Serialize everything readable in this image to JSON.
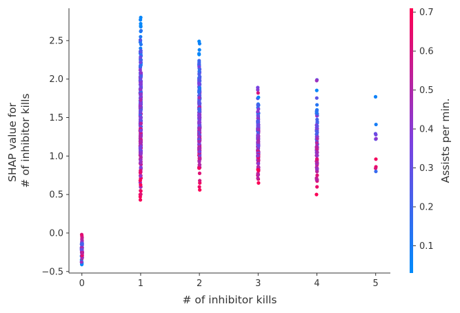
{
  "chart_data": {
    "type": "scatter",
    "xlabel": "# of inhibitor kills",
    "ylabel_lines": [
      "SHAP value for",
      "# of inhibitor kills"
    ],
    "xlim": [
      -0.22,
      5.25
    ],
    "ylim": [
      -0.52,
      2.92
    ],
    "xticks": [
      0,
      1,
      2,
      3,
      4,
      5
    ],
    "yticks": [
      -0.5,
      0.0,
      0.5,
      1.0,
      1.5,
      2.0,
      2.5
    ],
    "ytick_labels": [
      "−0.5",
      "0.0",
      "0.5",
      "1.0",
      "1.5",
      "2.0",
      "2.5"
    ],
    "grid": false,
    "colorbar": {
      "label": "Assists per min.",
      "range": [
        0.03,
        0.71
      ],
      "ticks": [
        0.1,
        0.2,
        0.3,
        0.4,
        0.5,
        0.6,
        0.7
      ],
      "tick_labels": [
        "0.1",
        "0.2",
        "0.3",
        "0.4",
        "0.5",
        "0.6",
        "0.7"
      ],
      "colors": {
        "low": "#008bfb",
        "mid": "#7e40df",
        "high": "#ff0052"
      }
    },
    "groups": [
      {
        "x": 0,
        "range": [
          -0.41,
          -0.02
        ],
        "count": 60,
        "points": [
          [
            -0.02,
            0.62
          ],
          [
            -0.04,
            0.65
          ],
          [
            -0.06,
            0.58
          ],
          [
            -0.08,
            0.55
          ],
          [
            -0.1,
            0.52
          ],
          [
            -0.12,
            0.45
          ],
          [
            -0.15,
            0.35
          ],
          [
            -0.2,
            0.25
          ],
          [
            -0.25,
            0.15
          ],
          [
            -0.3,
            0.08
          ],
          [
            -0.35,
            0.06
          ],
          [
            -0.38,
            0.05
          ],
          [
            -0.4,
            0.06
          ],
          [
            -0.41,
            0.05
          ]
        ]
      },
      {
        "x": 1,
        "range": [
          0.42,
          2.8
        ],
        "count": 320,
        "points": [
          [
            2.8,
            0.05
          ],
          [
            2.77,
            0.06
          ],
          [
            2.72,
            0.05
          ],
          [
            2.68,
            0.08
          ],
          [
            2.62,
            0.06
          ],
          [
            2.55,
            0.1
          ],
          [
            2.5,
            0.07
          ],
          [
            2.45,
            0.12
          ],
          [
            2.4,
            0.08
          ],
          [
            2.3,
            0.15
          ],
          [
            1.3,
            0.65
          ],
          [
            1.2,
            0.6
          ],
          [
            0.6,
            0.66
          ],
          [
            0.55,
            0.63
          ],
          [
            0.5,
            0.68
          ],
          [
            0.47,
            0.7
          ],
          [
            0.43,
            0.69
          ]
        ]
      },
      {
        "x": 2,
        "range": [
          0.55,
          2.5
        ],
        "count": 300,
        "points": [
          [
            2.49,
            0.05
          ],
          [
            2.46,
            0.07
          ],
          [
            2.38,
            0.06
          ],
          [
            2.33,
            0.08
          ],
          [
            2.22,
            0.12
          ],
          [
            2.2,
            0.18
          ],
          [
            2.08,
            0.35
          ],
          [
            1.9,
            0.3
          ],
          [
            0.65,
            0.68
          ],
          [
            0.6,
            0.66
          ],
          [
            0.56,
            0.7
          ]
        ]
      },
      {
        "x": 3,
        "range": [
          0.63,
          1.9
        ],
        "count": 180,
        "points": [
          [
            1.89,
            0.35
          ],
          [
            1.86,
            0.4
          ],
          [
            1.82,
            0.6
          ],
          [
            1.75,
            0.3
          ],
          [
            1.66,
            0.08
          ],
          [
            1.63,
            0.1
          ],
          [
            1.3,
            0.6
          ],
          [
            0.75,
            0.65
          ],
          [
            0.7,
            0.66
          ],
          [
            0.65,
            0.7
          ]
        ]
      },
      {
        "x": 4,
        "range": [
          0.5,
          2.0
        ],
        "count": 90,
        "points": [
          [
            1.99,
            0.3
          ],
          [
            1.98,
            0.45
          ],
          [
            1.6,
            0.08
          ],
          [
            1.43,
            0.12
          ],
          [
            1.4,
            0.55
          ],
          [
            1.33,
            0.1
          ],
          [
            1.28,
            0.5
          ],
          [
            1.25,
            0.3
          ],
          [
            0.75,
            0.62
          ],
          [
            0.6,
            0.66
          ],
          [
            0.5,
            0.7
          ]
        ]
      },
      {
        "x": 5,
        "range": [
          0.8,
          1.78
        ],
        "count": 10,
        "points": [
          [
            1.77,
            0.07
          ],
          [
            1.41,
            0.09
          ],
          [
            1.29,
            0.3
          ],
          [
            1.22,
            0.25
          ],
          [
            0.96,
            0.68
          ],
          [
            0.86,
            0.66
          ],
          [
            0.84,
            0.62
          ],
          [
            0.8,
            0.18
          ]
        ]
      }
    ]
  }
}
